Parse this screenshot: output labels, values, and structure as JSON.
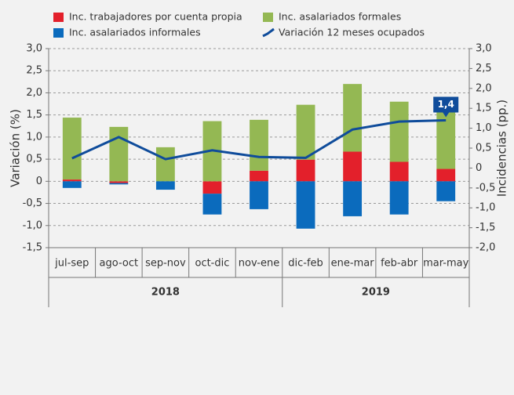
{
  "chart_data": {
    "type": "bar",
    "categories": [
      "jul-sep",
      "ago-oct",
      "sep-nov",
      "oct-dic",
      "nov-ene",
      "dic-feb",
      "ene-mar",
      "feb-abr",
      "mar-may"
    ],
    "groups": [
      {
        "label": "2018",
        "span": 5
      },
      {
        "label": "2019",
        "span": 4
      }
    ],
    "series": [
      {
        "name": "Inc. trabajadores por cuenta propia",
        "color": "#e3202b",
        "values": [
          0.04,
          -0.04,
          0.0,
          -0.28,
          0.24,
          0.49,
          0.67,
          0.44,
          0.28
        ]
      },
      {
        "name": "Inc. asalariados formales",
        "color": "#94b853",
        "values": [
          1.4,
          1.23,
          0.77,
          1.36,
          1.15,
          1.24,
          1.53,
          1.36,
          1.35
        ]
      },
      {
        "name": "Inc. asalariados informales",
        "color": "#0b6bbd",
        "values": [
          -0.15,
          -0.03,
          -0.19,
          -0.47,
          -0.63,
          -1.07,
          -0.79,
          -0.75,
          -0.45
        ]
      },
      {
        "name": "Variación 12 meses ocupados",
        "color": "#0f4c9b",
        "type": "line",
        "values": [
          0.52,
          1.0,
          0.5,
          0.7,
          0.55,
          0.53,
          1.17,
          1.35,
          1.38
        ],
        "value_labels": [
          null,
          null,
          null,
          null,
          null,
          null,
          null,
          null,
          "1,4"
        ]
      }
    ],
    "ylabel": "Variación (%)",
    "y2label": "Incidencias (pp.)",
    "ylim": [
      -1.5,
      3.0
    ],
    "yticks": [
      {
        "value": 3.0,
        "label": "3,0"
      },
      {
        "value": 2.5,
        "label": "2,5"
      },
      {
        "value": 2.0,
        "label": "2,0"
      },
      {
        "value": 1.5,
        "label": "1,5"
      },
      {
        "value": 1.0,
        "label": "1,0"
      },
      {
        "value": 0.5,
        "label": "0,5"
      },
      0,
      {
        "value": -0.5,
        "label": "-0,5"
      },
      {
        "value": -1.0,
        "label": "-1,0"
      },
      {
        "value": -1.5,
        "label": "-1,5"
      }
    ],
    "y2lim": [
      -2.0,
      3.0
    ],
    "y2ticks": [
      {
        "value": 3.0,
        "label": "3,0"
      },
      {
        "value": 2.5,
        "label": "2,5"
      },
      {
        "value": 2.0,
        "label": "2,0"
      },
      {
        "value": 1.5,
        "label": "1,5"
      },
      {
        "value": 1.0,
        "label": "1,0"
      },
      {
        "value": 0.5,
        "label": "0,5"
      },
      0,
      {
        "value": -0.5,
        "label": "-0,5"
      },
      {
        "value": -1.0,
        "label": "-1,0"
      },
      {
        "value": -1.5,
        "label": "-1,5"
      },
      {
        "value": -2.0,
        "label": "-2,0"
      }
    ],
    "grid": true
  }
}
